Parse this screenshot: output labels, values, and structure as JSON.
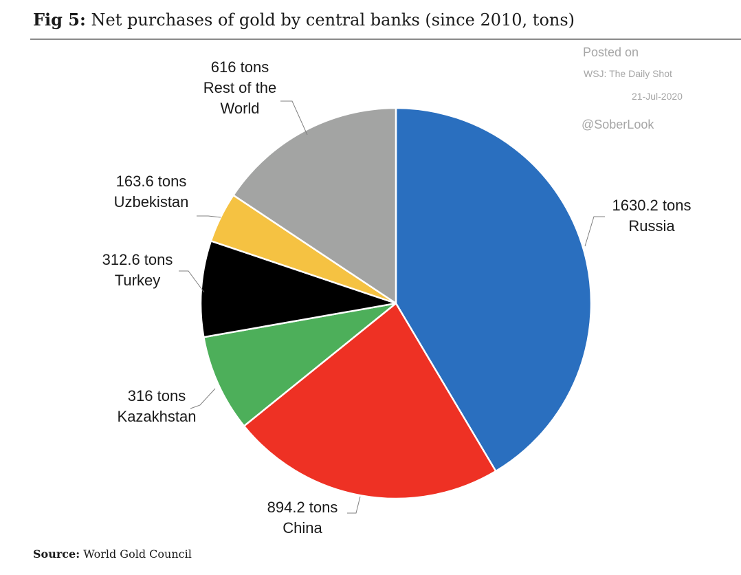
{
  "title_prefix": "Fig 5:",
  "title_text": "Net purchases of gold by central banks (since 2010, tons)",
  "watermark": {
    "posted": "Posted on",
    "outlet": "WSJ: The Daily Shot",
    "date": "21-Jul-2020",
    "handle": "@SoberLook"
  },
  "source_prefix": "Source:",
  "source_text": "World Gold Council",
  "chart_data": {
    "type": "pie",
    "title": "Net purchases of gold by central banks (since 2010, tons)",
    "unit": "tons",
    "start": "12 o'clock",
    "direction": "clockwise",
    "slices": [
      {
        "label": "Russia",
        "value": 1630.2,
        "value_text": "1630.2 tons",
        "color": "#2a6fbf"
      },
      {
        "label": "China",
        "value": 894.2,
        "value_text": "894.2 tons",
        "color": "#ee3124"
      },
      {
        "label": "Kazakhstan",
        "value": 316,
        "value_text": "316 tons",
        "color": "#4daf5a"
      },
      {
        "label": "Turkey",
        "value": 312.6,
        "value_text": "312.6 tons",
        "color": "#000000"
      },
      {
        "label": "Uzbekistan",
        "value": 163.6,
        "value_text": "163.6 tons",
        "color": "#f5c242"
      },
      {
        "label": "Rest of the World",
        "value": 616,
        "value_text": "616 tons",
        "color": "#a3a4a3"
      }
    ],
    "source": "World Gold Council"
  }
}
